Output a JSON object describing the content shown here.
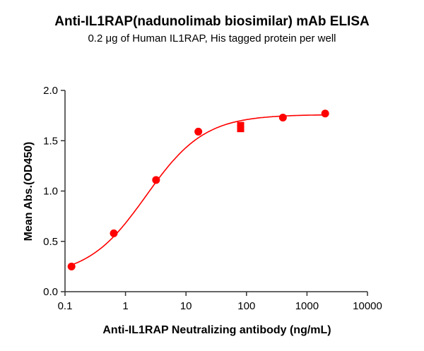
{
  "chart_data": {
    "type": "scatter",
    "title": "Anti-IL1RAP(nadunolimab biosimilar) mAb ELISA",
    "subtitle": "0.2 μg of Human IL1RAP, His tagged protein per well",
    "xlabel": "Anti-IL1RAP Neutralizing antibody (ng/mL)",
    "ylabel": "Mean Abs.(OD450)",
    "xscale": "log",
    "xlim": [
      0.1,
      10000
    ],
    "ylim": [
      0,
      2.0
    ],
    "xticks": [
      "0.1",
      "1",
      "10",
      "100",
      "1000",
      "10000"
    ],
    "yticks": [
      "0.0",
      "0.5",
      "1.0",
      "1.5",
      "2.0"
    ],
    "grid": false,
    "color": "#ff0000",
    "fit": "sigmoidal curve",
    "series": [
      {
        "x": [
          0.128,
          0.64,
          3.2,
          16,
          80,
          400,
          2000
        ],
        "y": [
          0.25,
          0.58,
          1.11,
          1.59,
          1.65,
          1.73,
          1.77
        ],
        "error": [
          0,
          0,
          0,
          0,
          0.03,
          0,
          0
        ]
      }
    ]
  }
}
